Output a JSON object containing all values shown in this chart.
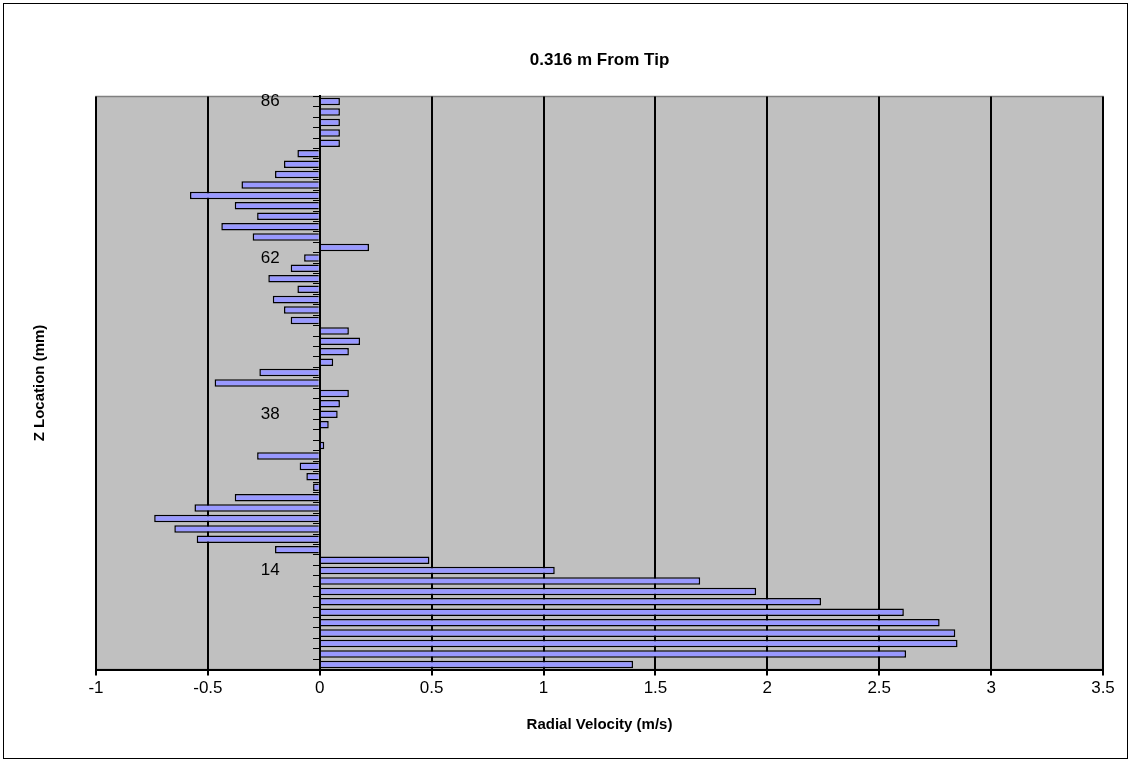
{
  "chart_data": {
    "type": "bar",
    "orientation": "horizontal",
    "title": "0.316 m From Tip",
    "xlabel": "Radial Velocity (m/s)",
    "ylabel": "Z Location (mm)",
    "categories": [
      "86",
      null,
      null,
      null,
      null,
      null,
      null,
      null,
      null,
      null,
      null,
      null,
      null,
      null,
      null,
      "62",
      null,
      null,
      null,
      null,
      null,
      null,
      null,
      null,
      null,
      null,
      null,
      null,
      null,
      null,
      "38",
      null,
      null,
      null,
      null,
      null,
      null,
      null,
      null,
      null,
      null,
      null,
      null,
      null,
      null,
      "14",
      null,
      null,
      null,
      null,
      null,
      null,
      null,
      null,
      null
    ],
    "values": [
      0.09,
      0.09,
      0.09,
      0.09,
      0.09,
      -0.1,
      -0.16,
      -0.2,
      -0.35,
      -0.58,
      -0.38,
      -0.28,
      -0.44,
      -0.3,
      0.22,
      -0.07,
      -0.13,
      -0.23,
      -0.1,
      -0.21,
      -0.16,
      -0.13,
      0.13,
      0.18,
      0.13,
      0.06,
      -0.27,
      -0.47,
      0.13,
      0.09,
      0.08,
      0.04,
      null,
      0.02,
      -0.28,
      -0.09,
      -0.06,
      -0.03,
      -0.38,
      -0.56,
      -0.74,
      -0.65,
      -0.55,
      -0.2,
      0.49,
      1.05,
      1.7,
      1.95,
      2.24,
      2.61,
      2.77,
      2.84,
      2.85,
      2.62,
      1.4
    ],
    "color": "#9999ff",
    "xlim": [
      -1,
      3.5
    ],
    "xticks": [
      -1,
      -0.5,
      0,
      0.5,
      1,
      1.5,
      2,
      2.5,
      3,
      3.5
    ],
    "grid": "x"
  }
}
